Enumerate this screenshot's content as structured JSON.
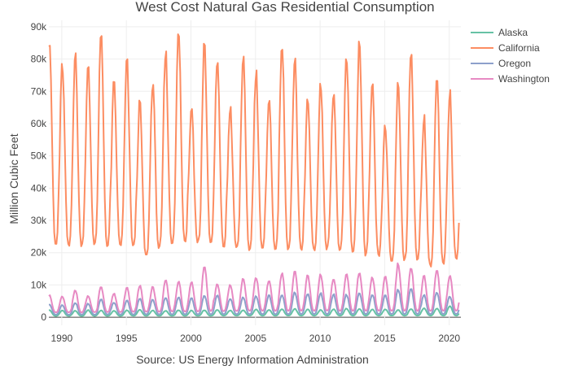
{
  "chart_data": {
    "type": "line",
    "title": "West Cost Natural Gas Residential Consumption",
    "xlabel": "Source: US Energy Information Administration",
    "ylabel": "Million Cubic Feet",
    "x_start": 1989.0,
    "x_end": 2020.75,
    "xlim": [
      1989.0,
      2020.9
    ],
    "ylim": [
      -2500,
      92000
    ],
    "x_ticks": [
      1990,
      1995,
      2000,
      2005,
      2010,
      2015,
      2020
    ],
    "x_tick_labels": [
      "1990",
      "1995",
      "2000",
      "2005",
      "2010",
      "2015",
      "2020"
    ],
    "y_ticks": [
      0,
      10000,
      20000,
      30000,
      40000,
      50000,
      60000,
      70000,
      80000,
      90000
    ],
    "y_tick_labels": [
      "0",
      "10k",
      "20k",
      "30k",
      "40k",
      "50k",
      "60k",
      "70k",
      "80k",
      "90k"
    ],
    "grid": true,
    "legend_position": "top-right",
    "series": [
      {
        "name": "Alaska",
        "color": "#66c2a5",
        "annual_peaks": [
          2200,
          2100,
          2000,
          2200,
          2100,
          2000,
          2200,
          2300,
          2100,
          2000,
          2200,
          2100,
          2200,
          2300,
          2100,
          2200,
          2400,
          2300,
          2500,
          2600,
          2400,
          2300,
          2500,
          2700,
          2600,
          2400,
          2500,
          2300,
          2600,
          2800,
          2700,
          3400
        ],
        "annual_troughs": [
          400,
          400,
          400,
          400,
          400,
          400,
          450,
          450,
          450,
          450,
          450,
          450,
          450,
          500,
          500,
          500,
          500,
          500,
          500,
          500,
          500,
          500,
          500,
          500,
          500,
          500,
          500,
          500,
          500,
          500,
          500,
          500
        ]
      },
      {
        "name": "California",
        "color": "#fc8d62",
        "annual_peaks": [
          88000,
          78500,
          81500,
          77500,
          87500,
          72500,
          79500,
          66500,
          73500,
          82000,
          88500,
          66500,
          85500,
          79500,
          65500,
          80500,
          76500,
          68500,
          85500,
          79500,
          67500,
          72500,
          70500,
          81000,
          85500,
          71500,
          60000,
          73000,
          83500,
          62500,
          74000,
          70000
        ],
        "annual_troughs": [
          22500,
          22000,
          22500,
          23000,
          22000,
          22500,
          22000,
          19000,
          21500,
          23000,
          23500,
          23500,
          23000,
          22000,
          21500,
          21000,
          21000,
          21500,
          21000,
          21000,
          21000,
          21500,
          20500,
          20500,
          19500,
          19000,
          17500,
          18000,
          17500,
          16000,
          16500,
          18500
        ]
      },
      {
        "name": "Oregon",
        "color": "#8da0cb",
        "annual_peaks": [
          4000,
          3800,
          4500,
          4200,
          5600,
          4600,
          5200,
          5800,
          5400,
          6100,
          6200,
          5900,
          6600,
          6800,
          5800,
          6200,
          6600,
          6800,
          7000,
          7700,
          7300,
          7500,
          7100,
          7000,
          7600,
          7100,
          6800,
          8600,
          8800,
          6900,
          7700,
          6500
        ],
        "annual_troughs": [
          800,
          800,
          800,
          800,
          850,
          850,
          850,
          900,
          900,
          900,
          900,
          900,
          900,
          950,
          950,
          950,
          950,
          950,
          950,
          1000,
          1000,
          1000,
          1000,
          1000,
          1000,
          1000,
          1000,
          1000,
          1000,
          1000,
          1000,
          1000
        ]
      },
      {
        "name": "Washington",
        "color": "#e78ac3",
        "annual_peaks": [
          6800,
          6500,
          8300,
          6600,
          9600,
          7300,
          9200,
          9800,
          9500,
          11500,
          11000,
          11000,
          15800,
          10400,
          10000,
          12000,
          12400,
          11500,
          13600,
          14200,
          13000,
          13300,
          12000,
          13400,
          14100,
          12400,
          12500,
          16600,
          15500,
          12800,
          14800,
          13000
        ],
        "annual_troughs": [
          1500,
          1500,
          1500,
          1600,
          1600,
          1600,
          1700,
          1700,
          1700,
          1800,
          1800,
          1800,
          1900,
          1900,
          1900,
          2000,
          2000,
          2000,
          2000,
          2000,
          2000,
          2000,
          2000,
          2000,
          2000,
          2000,
          2000,
          2000,
          2000,
          2000,
          2000,
          2000
        ]
      }
    ]
  }
}
